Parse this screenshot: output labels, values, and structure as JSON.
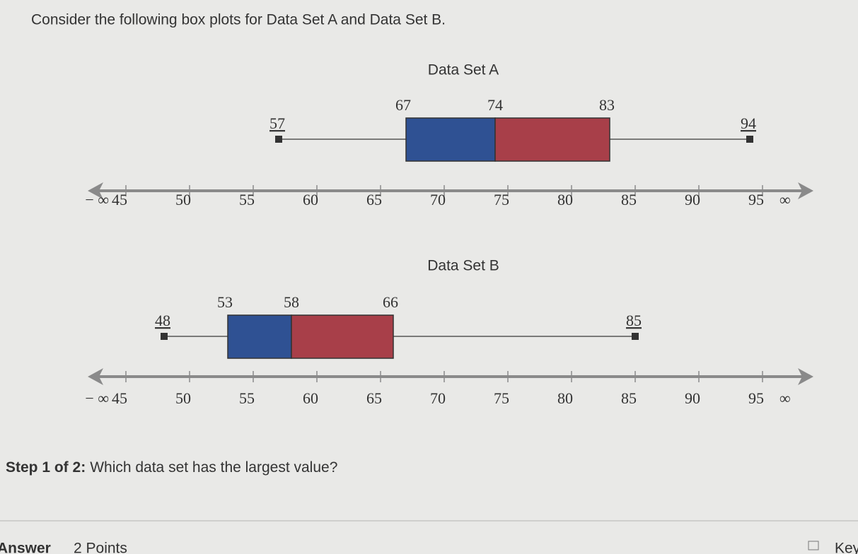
{
  "question": "Consider the following box plots for Data Set A and Data Set B.",
  "chart_data": [
    {
      "type": "box",
      "title": "Data Set A",
      "min": 57,
      "q1": 67,
      "median": 74,
      "q3": 83,
      "max": 94,
      "lower_color": "#2f5193",
      "upper_color": "#a83f49",
      "xlim": [
        42,
        99
      ],
      "xticks": [
        45,
        50,
        55,
        60,
        65,
        70,
        75,
        80,
        85,
        90,
        95
      ],
      "left_label": "− ∞",
      "right_label": "∞"
    },
    {
      "type": "box",
      "title": "Data Set B",
      "min": 48,
      "q1": 53,
      "median": 58,
      "q3": 66,
      "max": 85,
      "lower_color": "#2f5193",
      "upper_color": "#a83f49",
      "xlim": [
        42,
        99
      ],
      "xticks": [
        45,
        50,
        55,
        60,
        65,
        70,
        75,
        80,
        85,
        90,
        95
      ],
      "left_label": "− ∞",
      "right_label": "∞"
    }
  ],
  "step_label": "Step 1 of 2:",
  "step_question": "Which data set has the largest value?",
  "answer_label": "Answer",
  "points": "2 Points",
  "keypad": "Key"
}
